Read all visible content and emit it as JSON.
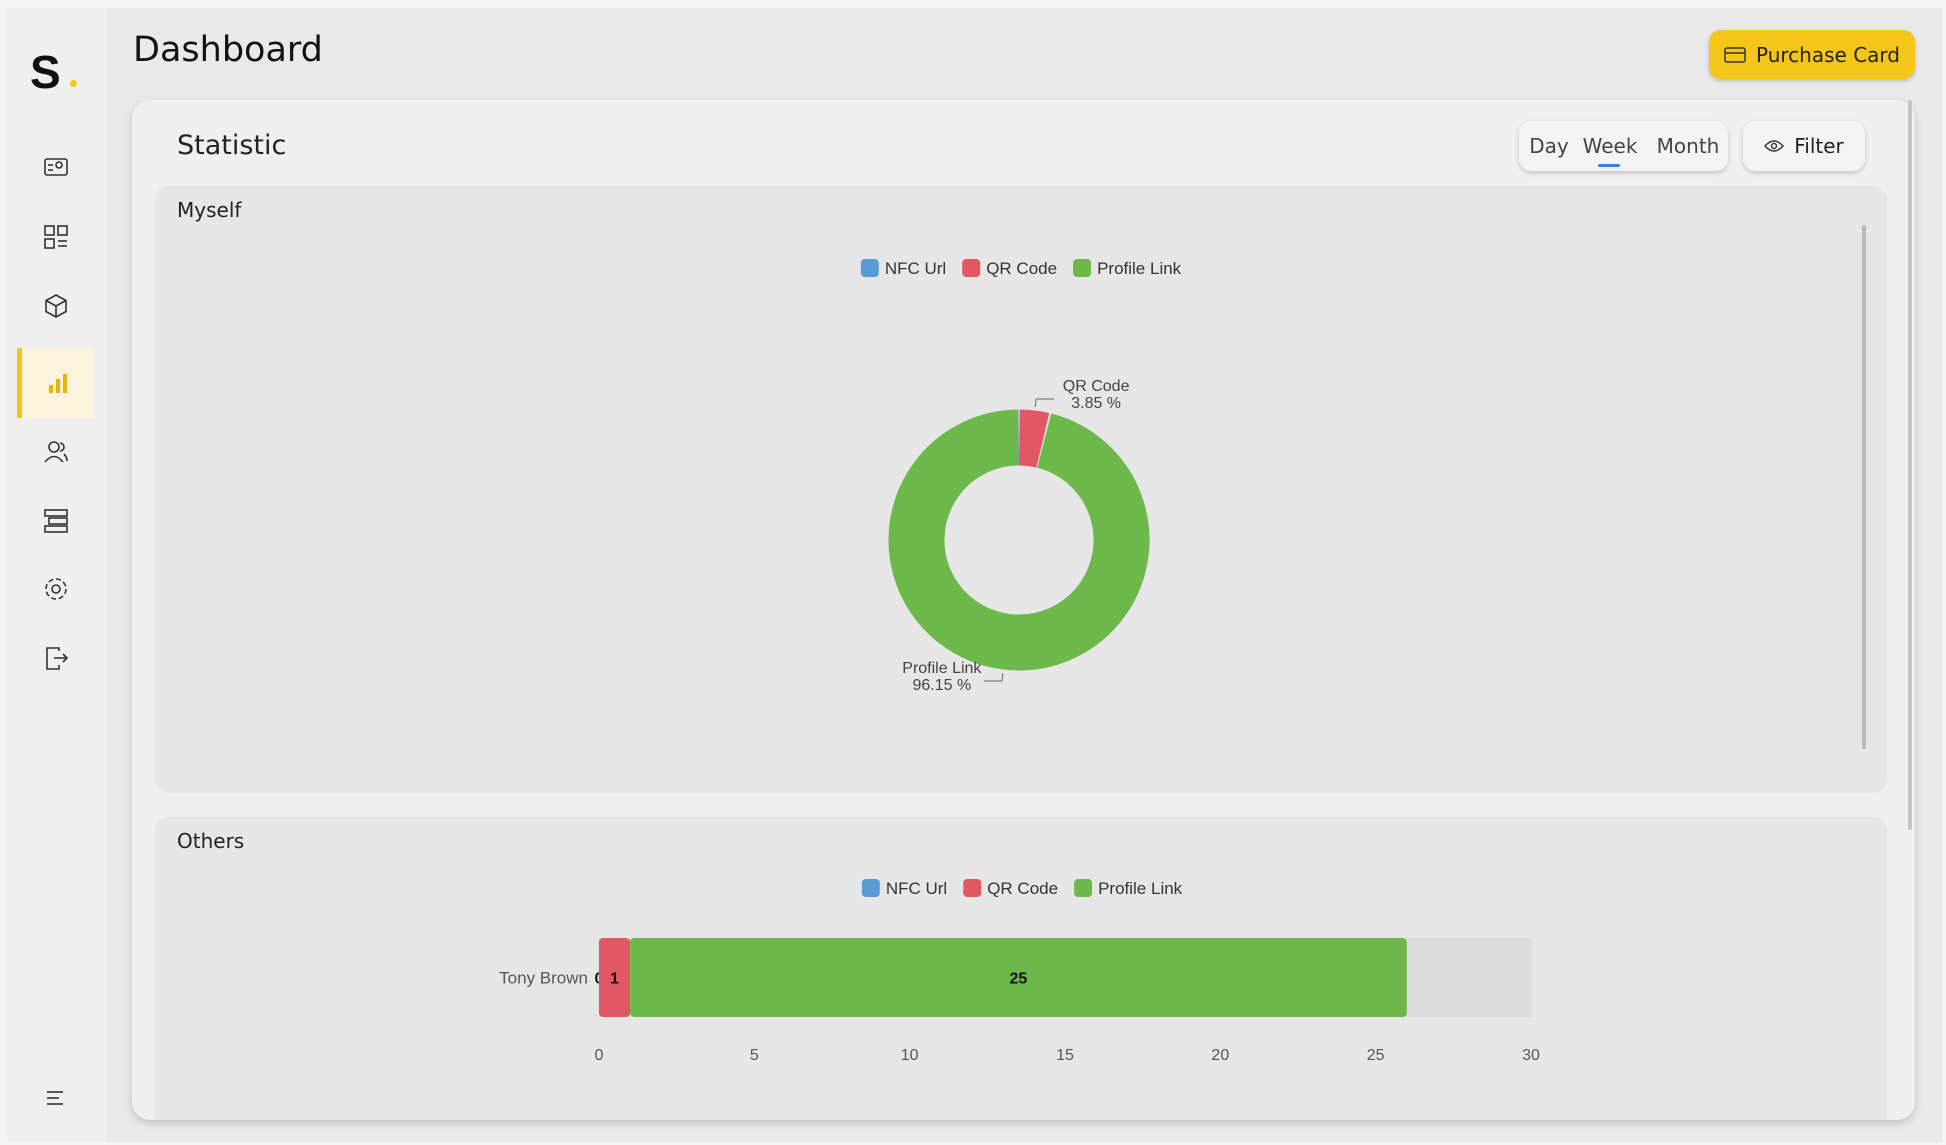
{
  "sidebar": {
    "logo": "S"
  },
  "header": {
    "title": "Dashboard",
    "button": "Purchase Card"
  },
  "statistic": {
    "title": "Statistic",
    "periods": [
      "Day",
      "Week",
      "Month"
    ],
    "filter": "Filter"
  },
  "myself": {
    "title": "Myself",
    "chart_data": {
      "type": "pie",
      "donut": true,
      "categories": [
        "NFC Url",
        "QR Code",
        "Profile Link"
      ],
      "values": [
        0,
        3.85,
        96.15
      ],
      "value_labels": [
        null,
        "3.85 %",
        "96.15 %"
      ],
      "colors": [
        "#5b9bd5",
        "#e15864",
        "#6db84a"
      ]
    }
  },
  "others": {
    "title": "Others",
    "chart_data": {
      "type": "bar",
      "orientation": "horizontal",
      "stacked": true,
      "categories": [
        "Tony Brown"
      ],
      "series": [
        {
          "name": "NFC Url",
          "color": "#5b9bd5",
          "values": [
            0
          ]
        },
        {
          "name": "QR Code",
          "color": "#e15864",
          "values": [
            1
          ]
        },
        {
          "name": "Profile Link",
          "color": "#6db84a",
          "values": [
            25
          ]
        }
      ],
      "xlim": [
        0,
        30
      ],
      "xticks": [
        0,
        5,
        10,
        15,
        20,
        25,
        30
      ]
    }
  }
}
